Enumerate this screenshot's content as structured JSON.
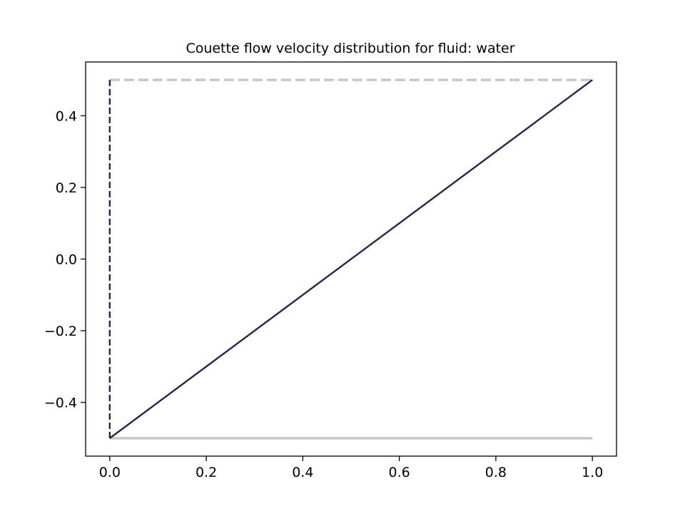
{
  "chart_data": {
    "type": "line",
    "title": "Couette flow velocity distribution for fluid: water",
    "xlabel": "",
    "ylabel": "",
    "xlim": [
      -0.05,
      1.05
    ],
    "ylim": [
      -0.55,
      0.55
    ],
    "xticks": [
      0.0,
      0.2,
      0.4,
      0.6,
      0.8,
      1.0
    ],
    "xtick_labels": [
      "0.0",
      "0.2",
      "0.4",
      "0.6",
      "0.8",
      "1.0"
    ],
    "yticks": [
      -0.4,
      -0.2,
      0.0,
      0.2,
      0.4
    ],
    "ytick_labels": [
      "−0.4",
      "−0.2",
      "0.0",
      "0.2",
      "0.4"
    ],
    "grid": false,
    "legend": "none",
    "series": [
      {
        "style": "solid",
        "color": "#c8c8c8",
        "x": [
          0.0,
          1.0
        ],
        "y": [
          -0.5,
          -0.5
        ]
      },
      {
        "style": "dashed",
        "color": "#c8c8c8",
        "x": [
          0.0,
          1.0
        ],
        "y": [
          0.5,
          0.5
        ]
      },
      {
        "style": "dashed",
        "color": "#27254d",
        "x": [
          0.0,
          0.0
        ],
        "y": [
          -0.5,
          0.5
        ]
      },
      {
        "style": "solid",
        "color": "#27254d",
        "x": [
          0.0,
          1.0
        ],
        "y": [
          -0.5,
          0.5
        ]
      }
    ]
  }
}
